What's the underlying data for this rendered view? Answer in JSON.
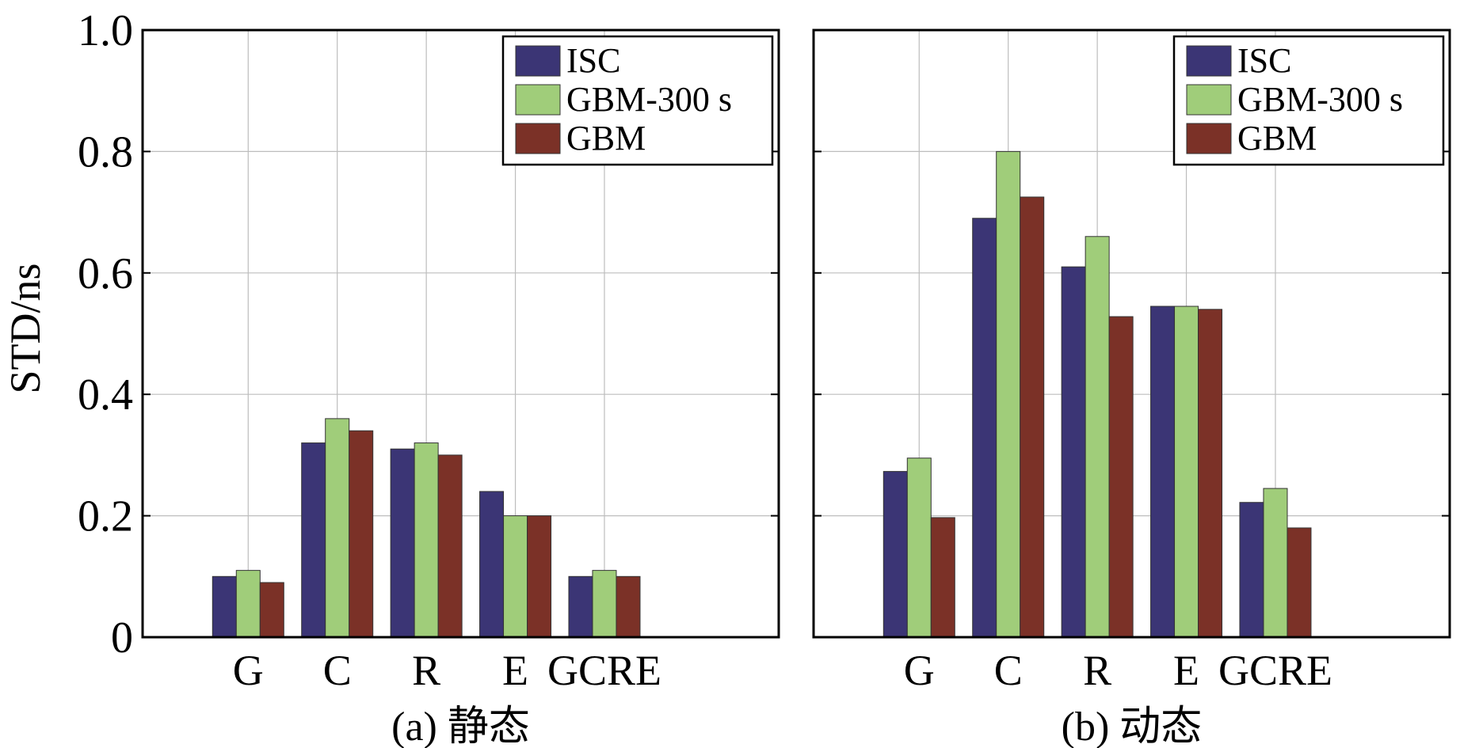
{
  "y_axis_label": "STD/ns",
  "y_ticks": [
    "0",
    "0.2",
    "0.4",
    "0.6",
    "0.8",
    "1.0"
  ],
  "colors": {
    "ISC": "#3b3575",
    "GBM-300 s": "#a0cd7a",
    "GBM": "#7b3127"
  },
  "chart_data": [
    {
      "type": "bar",
      "title": "(a) 静态",
      "xlabel": "",
      "ylabel": "STD/ns",
      "ylim": [
        0,
        1.0
      ],
      "legend": "top-right",
      "grid": true,
      "categories": [
        "G",
        "C",
        "R",
        "E",
        "GCRE"
      ],
      "series": [
        {
          "name": "ISC",
          "values": [
            0.1,
            0.32,
            0.31,
            0.24,
            0.1
          ]
        },
        {
          "name": "GBM-300 s",
          "values": [
            0.11,
            0.36,
            0.32,
            0.2,
            0.11
          ]
        },
        {
          "name": "GBM",
          "values": [
            0.09,
            0.34,
            0.3,
            0.2,
            0.1
          ]
        }
      ]
    },
    {
      "type": "bar",
      "title": "(b) 动态",
      "xlabel": "",
      "ylabel": "",
      "ylim": [
        0,
        1.0
      ],
      "legend": "top-right",
      "grid": true,
      "categories": [
        "G",
        "C",
        "R",
        "E",
        "GCRE"
      ],
      "series": [
        {
          "name": "ISC",
          "values": [
            0.273,
            0.69,
            0.61,
            0.545,
            0.222
          ]
        },
        {
          "name": "GBM-300 s",
          "values": [
            0.295,
            0.8,
            0.66,
            0.545,
            0.245
          ]
        },
        {
          "name": "GBM",
          "values": [
            0.197,
            0.725,
            0.528,
            0.54,
            0.18
          ]
        }
      ]
    }
  ]
}
